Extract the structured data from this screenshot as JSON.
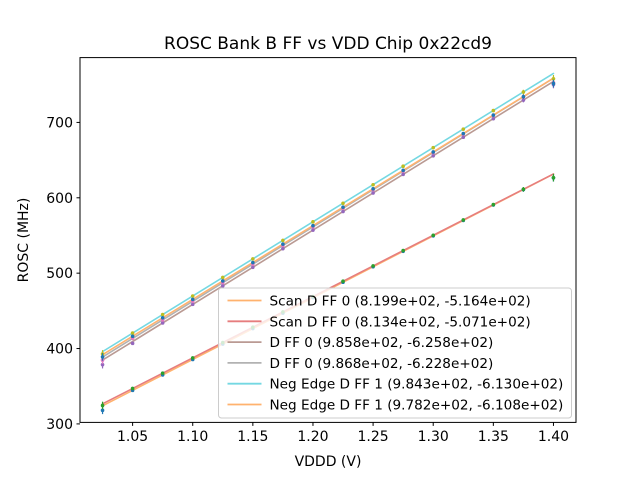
{
  "title": "ROSC Bank B FF vs VDD Chip 0x22cd9",
  "axes": {
    "xlabel": "VDDD (V)",
    "ylabel": "ROSC (MHz)"
  },
  "chart_data": {
    "type": "scatter",
    "title": "ROSC Bank B FF vs VDD Chip 0x22cd9",
    "xlabel": "VDDD (V)",
    "ylabel": "ROSC (MHz)",
    "xlim": [
      1.00625,
      1.41875
    ],
    "ylim": [
      302,
      786
    ],
    "xticks": [
      "1.05",
      "1.10",
      "1.15",
      "1.20",
      "1.25",
      "1.30",
      "1.35",
      "1.40"
    ],
    "yticks": [
      "300",
      "400",
      "500",
      "600",
      "700"
    ],
    "grid": false,
    "legend_position": "lower right",
    "x": [
      1.025,
      1.05,
      1.075,
      1.1,
      1.125,
      1.15,
      1.175,
      1.2,
      1.225,
      1.25,
      1.275,
      1.3,
      1.325,
      1.35,
      1.375,
      1.4
    ],
    "yerr": [
      5,
      2,
      2,
      2,
      2,
      2,
      2,
      2,
      2,
      2,
      2,
      2,
      2,
      2,
      3,
      5
    ],
    "series": [
      {
        "name": "Scan D FF 0",
        "legend_label": "Scan D FF 0 (8.199e+02, -5.164e+02)",
        "fit_slope": 819.9,
        "fit_intercept": -516.4,
        "line_color": "#ffb26e",
        "marker_color": "#1f77b4",
        "y": [
          318,
          344.5,
          365,
          385.5,
          406,
          426.5,
          447,
          467.5,
          488,
          508.5,
          529,
          549.4,
          569.9,
          590.4,
          610.9,
          626.5
        ]
      },
      {
        "name": "Scan D FF 0",
        "legend_label": "Scan D FF 0 (8.134e+02, -5.071e+02)",
        "fit_slope": 813.4,
        "fit_intercept": -507.1,
        "line_color": "#e67d7e",
        "marker_color": "#2ca02c",
        "y": [
          324.5,
          347,
          367.3,
          387.6,
          408,
          428.3,
          448.6,
          469,
          489.3,
          509.6,
          530,
          550.3,
          570.6,
          591,
          611.3,
          626.7
        ]
      },
      {
        "name": "D FF 0",
        "legend_label": "D FF 0 (9.858e+02, -6.258e+02)",
        "fit_slope": 985.8,
        "fit_intercept": -625.8,
        "line_color": "#ba9a93",
        "marker_color": "#9467bd",
        "y": [
          378.6,
          406.9,
          433.9,
          458.6,
          483.2,
          507.8,
          532.5,
          557.1,
          581.8,
          606.4,
          631.1,
          655.7,
          680.4,
          705,
          729.6,
          750.3
        ]
      },
      {
        "name": "D FF 0",
        "legend_label": "D FF 0 (9.868e+02, -6.228e+02)",
        "fit_slope": 986.8,
        "fit_intercept": -622.8,
        "line_color": "#b2b2b2",
        "marker_color": "#e377c2",
        "y": [
          384.7,
          413.4,
          438,
          462.7,
          487.4,
          512,
          536.7,
          561.4,
          586,
          610.7,
          635.4,
          660,
          684.7,
          709.4,
          734,
          752.7
        ]
      },
      {
        "name": "Neg Edge D FF 1",
        "legend_label": "Neg Edge D FF 1 (9.843e+02, -6.130e+02)",
        "fit_slope": 984.3,
        "fit_intercept": -613.0,
        "line_color": "#74d8e2",
        "marker_color": "#bcbd22",
        "y": [
          392.9,
          420.5,
          445.1,
          469.7,
          494.3,
          518.9,
          543.5,
          568.1,
          592.7,
          617.3,
          641.9,
          666.5,
          691.1,
          715.7,
          740.3,
          757.9
        ]
      },
      {
        "name": "Neg Edge D FF 1",
        "legend_label": "Neg Edge D FF 1 (9.782e+02, -6.108e+02)",
        "fit_slope": 978.2,
        "fit_intercept": -610.8,
        "line_color": "#ffb26e",
        "marker_color": "#1f77b4",
        "y": [
          388.9,
          416.3,
          440.8,
          465.2,
          489.7,
          514.1,
          538.6,
          563,
          587.5,
          611.9,
          636.4,
          660.8,
          685.3,
          709.7,
          734.2,
          751.7
        ]
      }
    ]
  },
  "style": {
    "axes_edge_color": "#000000",
    "legend_border_color": "#cccccc",
    "legend_bg_color": "rgba(255,255,255,0.8)"
  }
}
